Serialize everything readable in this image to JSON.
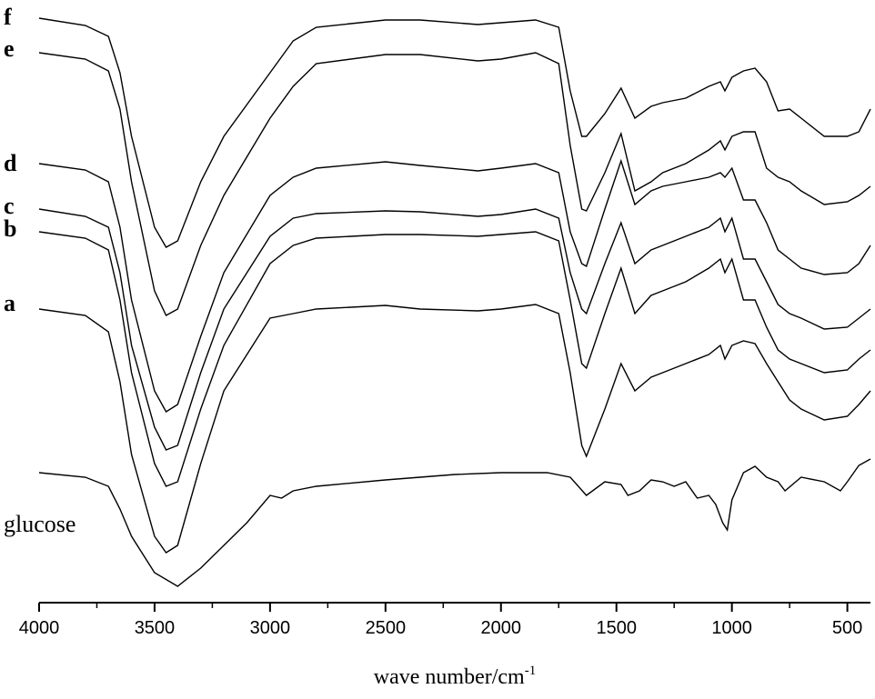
{
  "chart_data": {
    "type": "line",
    "x_label": "wave number/cm",
    "x_label_sup": "-1",
    "xlim": [
      4000,
      400
    ],
    "ylim": [
      0,
      663
    ],
    "xticks": [
      4000,
      3500,
      3000,
      2500,
      2000,
      1500,
      1000,
      500
    ],
    "xticks_minor": [
      3750,
      3250,
      2750,
      2250,
      1750,
      1250,
      750
    ],
    "color": "#000000",
    "series": [
      {
        "name": "f",
        "x": [
          4000,
          3800,
          3700,
          3650,
          3600,
          3500,
          3450,
          3400,
          3300,
          3200,
          3000,
          2900,
          2800,
          2500,
          2350,
          2100,
          2000,
          1850,
          1750,
          1700,
          1650,
          1630,
          1550,
          1480,
          1420,
          1350,
          1300,
          1200,
          1100,
          1050,
          1030,
          1000,
          950,
          900,
          850,
          800,
          750,
          700,
          600,
          500,
          450,
          400
        ],
        "values": [
          643,
          635,
          623,
          583,
          513,
          413,
          391,
          398,
          463,
          513,
          583,
          618,
          633,
          641,
          641,
          636,
          638,
          641,
          633,
          563,
          513,
          513,
          538,
          566,
          533,
          546,
          550,
          555,
          568,
          573,
          563,
          578,
          585,
          588,
          573,
          541,
          543,
          533,
          513,
          513,
          518,
          543
        ]
      },
      {
        "name": "e",
        "x": [
          4000,
          3800,
          3700,
          3650,
          3600,
          3500,
          3450,
          3400,
          3300,
          3200,
          3000,
          2900,
          2800,
          2500,
          2350,
          2100,
          2000,
          1850,
          1750,
          1700,
          1650,
          1630,
          1550,
          1480,
          1420,
          1350,
          1300,
          1200,
          1100,
          1050,
          1030,
          1000,
          950,
          900,
          850,
          800,
          750,
          700,
          600,
          500,
          450,
          400
        ],
        "values": [
          605,
          598,
          585,
          543,
          463,
          343,
          316,
          323,
          393,
          448,
          533,
          568,
          593,
          603,
          603,
          596,
          598,
          605,
          593,
          503,
          433,
          431,
          473,
          516,
          453,
          463,
          473,
          483,
          498,
          508,
          498,
          513,
          518,
          518,
          478,
          468,
          463,
          453,
          438,
          441,
          448,
          458
        ]
      },
      {
        "name": "d",
        "x": [
          4000,
          3800,
          3700,
          3650,
          3600,
          3500,
          3450,
          3400,
          3300,
          3200,
          3000,
          2900,
          2800,
          2500,
          2350,
          2100,
          2000,
          1850,
          1750,
          1700,
          1650,
          1630,
          1550,
          1480,
          1420,
          1350,
          1300,
          1200,
          1100,
          1050,
          1030,
          1000,
          950,
          900,
          850,
          800,
          750,
          700,
          600,
          500,
          450,
          400
        ],
        "values": [
          483,
          476,
          463,
          413,
          333,
          233,
          210,
          218,
          293,
          363,
          448,
          468,
          478,
          485,
          481,
          475,
          478,
          483,
          473,
          408,
          373,
          370,
          433,
          486,
          438,
          453,
          458,
          463,
          468,
          473,
          468,
          478,
          443,
          443,
          418,
          388,
          378,
          368,
          361,
          363,
          373,
          393
        ]
      },
      {
        "name": "c",
        "x": [
          4000,
          3800,
          3700,
          3650,
          3600,
          3500,
          3450,
          3400,
          3300,
          3200,
          3000,
          2900,
          2800,
          2500,
          2350,
          2100,
          2000,
          1850,
          1750,
          1700,
          1650,
          1630,
          1550,
          1480,
          1420,
          1350,
          1300,
          1200,
          1100,
          1050,
          1030,
          1000,
          950,
          900,
          850,
          800,
          750,
          700,
          600,
          500,
          450,
          400
        ],
        "values": [
          433,
          425,
          413,
          363,
          283,
          193,
          168,
          173,
          253,
          323,
          403,
          423,
          428,
          431,
          430,
          425,
          427,
          433,
          423,
          363,
          323,
          318,
          373,
          418,
          373,
          388,
          393,
          403,
          413,
          423,
          408,
          423,
          378,
          378,
          353,
          328,
          318,
          313,
          301,
          303,
          313,
          323
        ]
      },
      {
        "name": "b",
        "x": [
          4000,
          3800,
          3700,
          3650,
          3600,
          3500,
          3450,
          3400,
          3300,
          3200,
          3000,
          2900,
          2800,
          2500,
          2350,
          2100,
          2000,
          1850,
          1750,
          1700,
          1650,
          1630,
          1550,
          1480,
          1420,
          1350,
          1300,
          1200,
          1100,
          1050,
          1030,
          1000,
          950,
          900,
          850,
          800,
          750,
          700,
          600,
          500,
          450,
          400
        ],
        "values": [
          408,
          401,
          388,
          333,
          253,
          153,
          128,
          133,
          213,
          283,
          373,
          393,
          401,
          405,
          405,
          403,
          405,
          408,
          398,
          333,
          263,
          258,
          318,
          368,
          318,
          338,
          343,
          353,
          368,
          378,
          363,
          378,
          333,
          333,
          303,
          278,
          268,
          263,
          253,
          256,
          268,
          278
        ]
      },
      {
        "name": "a",
        "x": [
          4000,
          3800,
          3700,
          3650,
          3600,
          3500,
          3450,
          3400,
          3300,
          3200,
          3000,
          2900,
          2800,
          2500,
          2350,
          2100,
          2000,
          1850,
          1750,
          1700,
          1650,
          1630,
          1550,
          1480,
          1420,
          1350,
          1300,
          1200,
          1100,
          1050,
          1030,
          1000,
          950,
          900,
          850,
          800,
          750,
          700,
          600,
          500,
          450,
          400
        ],
        "values": [
          323,
          316,
          298,
          243,
          163,
          73,
          55,
          63,
          153,
          233,
          313,
          318,
          323,
          327,
          323,
          321,
          323,
          328,
          318,
          253,
          173,
          161,
          213,
          263,
          233,
          248,
          253,
          263,
          273,
          283,
          268,
          283,
          288,
          285,
          263,
          243,
          223,
          213,
          201,
          205,
          218,
          233
        ]
      },
      {
        "name": "glucose",
        "x": [
          4000,
          3800,
          3700,
          3650,
          3600,
          3500,
          3400,
          3300,
          3200,
          3100,
          3000,
          2950,
          2900,
          2800,
          2500,
          2350,
          2200,
          2000,
          1800,
          1700,
          1630,
          1550,
          1480,
          1450,
          1400,
          1350,
          1300,
          1250,
          1200,
          1150,
          1100,
          1070,
          1040,
          1020,
          1000,
          950,
          900,
          850,
          800,
          770,
          700,
          600,
          530,
          500,
          450,
          400
        ],
        "values": [
          143,
          138,
          128,
          103,
          73,
          33,
          18,
          38,
          63,
          88,
          118,
          115,
          123,
          128,
          135,
          138,
          141,
          143,
          143,
          138,
          118,
          133,
          130,
          118,
          123,
          135,
          133,
          128,
          133,
          115,
          118,
          108,
          88,
          80,
          113,
          143,
          150,
          138,
          133,
          123,
          138,
          133,
          123,
          133,
          151,
          158
        ]
      }
    ]
  }
}
